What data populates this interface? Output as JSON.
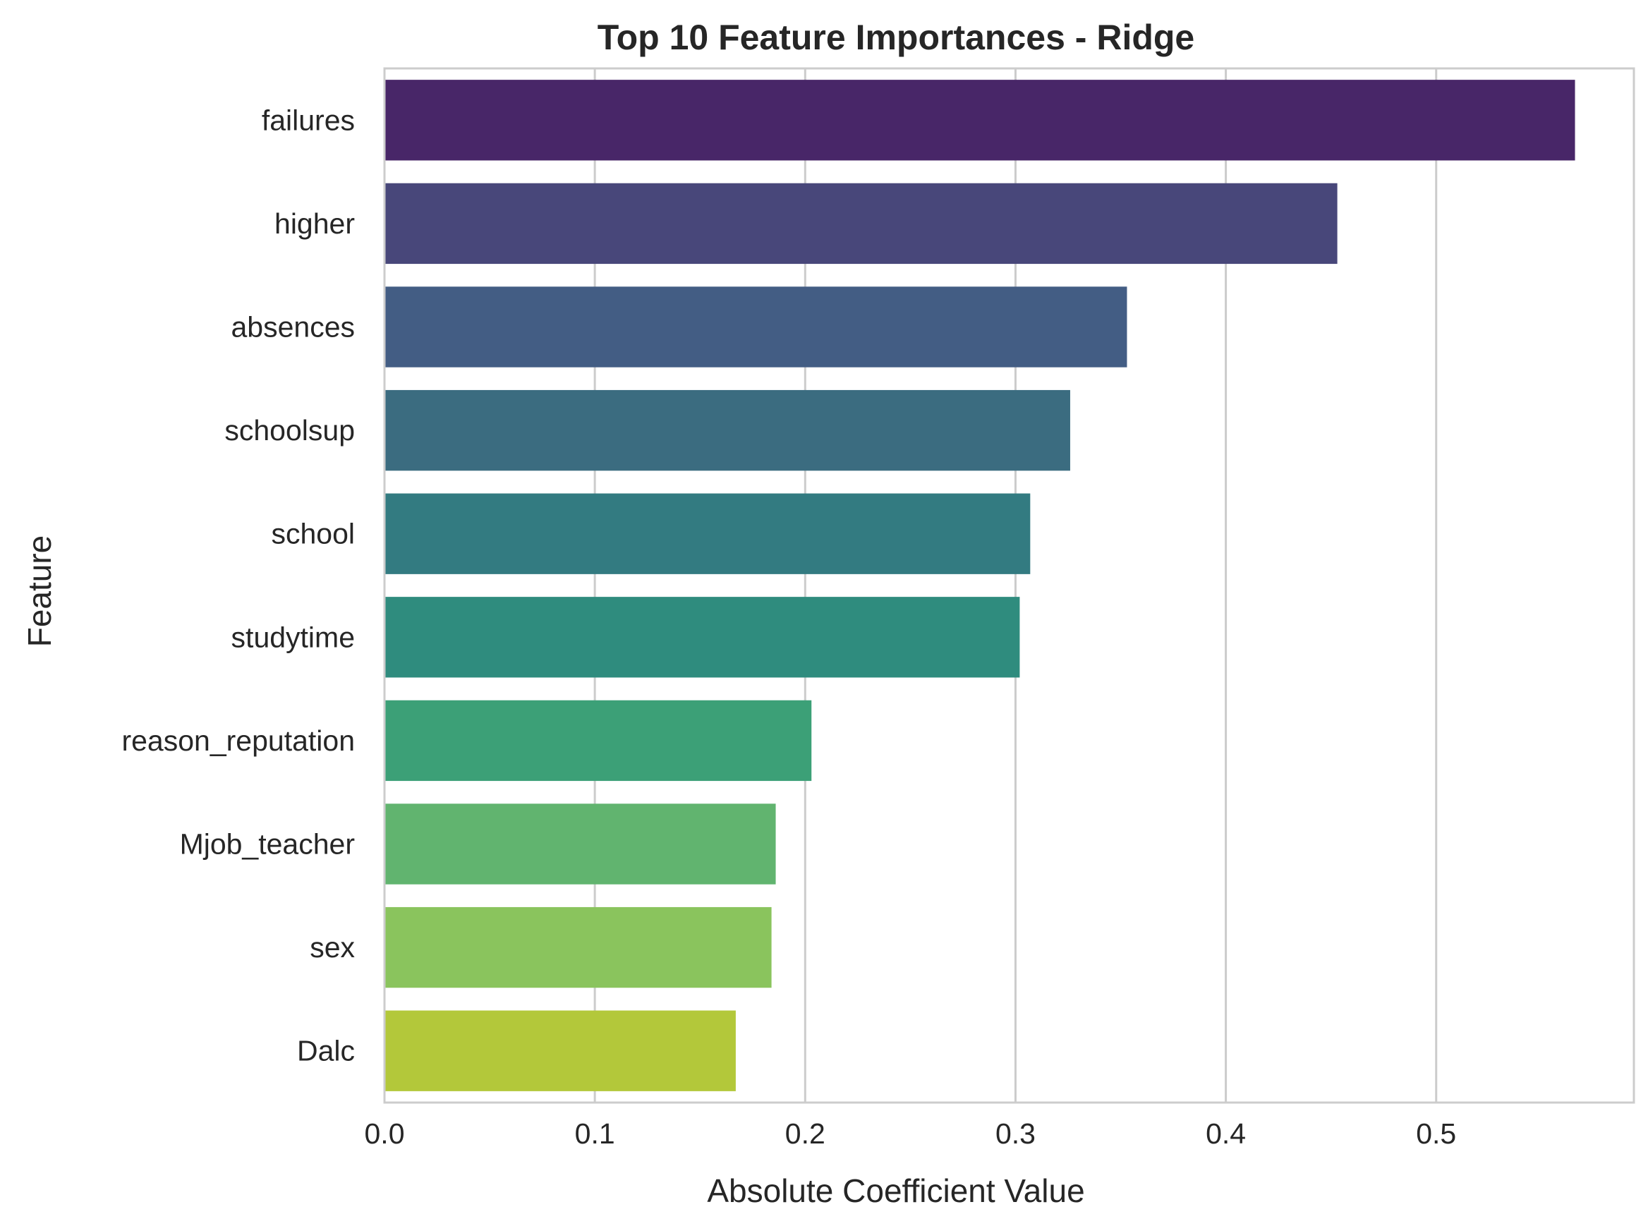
{
  "chart_data": {
    "type": "bar",
    "orientation": "horizontal",
    "title": "Top 10 Feature Importances - Ridge",
    "xlabel": "Absolute Coefficient Value",
    "ylabel": "Feature",
    "categories": [
      "failures",
      "higher",
      "absences",
      "schoolsup",
      "school",
      "studytime",
      "reason_reputation",
      "Mjob_teacher",
      "sex",
      "Dalc"
    ],
    "values": [
      0.566,
      0.453,
      0.353,
      0.326,
      0.307,
      0.302,
      0.203,
      0.186,
      0.184,
      0.167
    ],
    "xlim": [
      0,
      0.594
    ],
    "xticks": [
      0.0,
      0.1,
      0.2,
      0.3,
      0.4,
      0.5
    ],
    "xtick_labels": [
      "0.0",
      "0.1",
      "0.2",
      "0.3",
      "0.4",
      "0.5"
    ],
    "grid": "vertical",
    "colors": [
      "#482668",
      "#48477a",
      "#435d84",
      "#3b6c80",
      "#337b81",
      "#2f8c7e",
      "#3ca077",
      "#61b46f",
      "#8ac45d",
      "#b3c83a"
    ]
  }
}
